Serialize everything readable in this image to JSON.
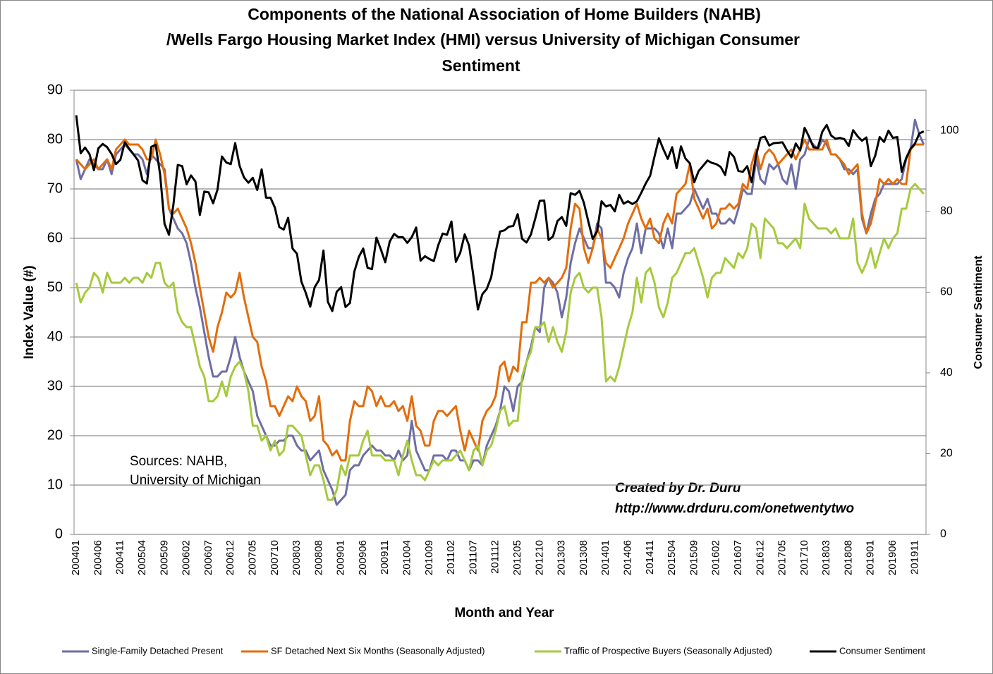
{
  "chart_data": {
    "type": "line",
    "title": [
      "Components of the National Association of Home Builders (NAHB)",
      "/Wells Fargo Housing Market Index (HMI) versus University of Michigan Consumer",
      "Sentiment"
    ],
    "x_label": "Month and Year",
    "y_label": "Index Value (#)",
    "y2_label": "Consumer Sentiment",
    "source": [
      "Sources: NAHB,",
      "University of Michigan"
    ],
    "credit": [
      "Created by Dr. Duru",
      "http://www.drduru.com/onetwentytwo"
    ],
    "ylim": [
      0,
      90
    ],
    "yticks": [
      0,
      10,
      20,
      30,
      40,
      50,
      60,
      70,
      80,
      90
    ],
    "y2lim": [
      0,
      110
    ],
    "y2ticks": [
      0,
      20,
      40,
      60,
      80,
      100
    ],
    "grid": true,
    "legend": "bottom",
    "categories": [
      "200401",
      null,
      null,
      null,
      null,
      "200406",
      null,
      null,
      null,
      null,
      "200411",
      null,
      null,
      null,
      null,
      "200504",
      null,
      null,
      null,
      null,
      "200509",
      null,
      null,
      null,
      null,
      "200602",
      null,
      null,
      null,
      null,
      "200607",
      null,
      null,
      null,
      null,
      "200612",
      null,
      null,
      null,
      null,
      "200705",
      null,
      null,
      null,
      null,
      "200710",
      null,
      null,
      null,
      null,
      "200803",
      null,
      null,
      null,
      null,
      "200808",
      null,
      null,
      null,
      null,
      "200901",
      null,
      null,
      null,
      null,
      "200906",
      null,
      null,
      null,
      null,
      "200911",
      null,
      null,
      null,
      null,
      "201004",
      null,
      null,
      null,
      null,
      "201009",
      null,
      null,
      null,
      null,
      "201102",
      null,
      null,
      null,
      null,
      "201107",
      null,
      null,
      null,
      null,
      "201112",
      null,
      null,
      null,
      null,
      "201205",
      null,
      null,
      null,
      null,
      "201210",
      null,
      null,
      null,
      null,
      "201303",
      null,
      null,
      null,
      null,
      "201308",
      null,
      null,
      null,
      null,
      "201401",
      null,
      null,
      null,
      null,
      "201406",
      null,
      null,
      null,
      null,
      "201411",
      null,
      null,
      null,
      null,
      "201504",
      null,
      null,
      null,
      null,
      "201509",
      null,
      null,
      null,
      null,
      "201602",
      null,
      null,
      null,
      null,
      "201607",
      null,
      null,
      null,
      null,
      "201612",
      null,
      null,
      null,
      null,
      "201705",
      null,
      null,
      null,
      null,
      "201710",
      null,
      null,
      null,
      null,
      "201803",
      null,
      null,
      null,
      null,
      "201808",
      null,
      null,
      null,
      null,
      "201901",
      null,
      null,
      null,
      null,
      "201906",
      null,
      null,
      null,
      null,
      "201911",
      null,
      null
    ],
    "series": [
      {
        "name": "Single-Family Detached Present",
        "color": "#6E6EA6",
        "values": [
          76,
          72,
          74,
          76,
          75,
          74,
          74,
          76,
          73,
          77,
          78,
          79,
          78,
          77,
          77,
          76,
          73,
          77,
          76,
          75,
          74,
          66,
          64,
          62,
          61,
          59,
          55,
          50,
          46,
          41,
          36,
          32,
          32,
          33,
          33,
          36,
          40,
          36,
          33,
          31,
          29,
          24,
          22,
          20,
          18,
          18,
          19,
          19,
          20,
          20,
          18,
          17,
          17,
          15,
          16,
          17,
          13,
          11,
          9,
          6,
          7,
          8,
          13,
          14,
          14,
          16,
          17,
          18,
          17,
          17,
          16,
          16,
          15,
          17,
          15,
          16,
          23,
          17,
          15,
          13,
          13,
          16,
          16,
          16,
          15,
          17,
          17,
          15,
          15,
          13,
          15,
          15,
          14,
          18,
          20,
          22,
          25,
          30,
          29,
          25,
          30,
          31,
          35,
          38,
          42,
          41,
          50,
          52,
          51,
          49,
          44,
          48,
          55,
          59,
          62,
          60,
          58,
          58,
          63,
          62,
          51,
          51,
          50,
          48,
          53,
          56,
          58,
          63,
          57,
          62,
          62,
          62,
          61,
          58,
          62,
          58,
          65,
          65,
          66,
          67,
          70,
          68,
          66,
          68,
          65,
          65,
          63,
          63,
          64,
          63,
          66,
          70,
          69,
          69,
          76,
          72,
          71,
          75,
          74,
          75,
          72,
          71,
          75,
          70,
          76,
          77,
          80,
          79,
          78,
          80,
          79,
          77,
          77,
          76,
          74,
          74,
          73,
          74,
          64,
          61,
          65,
          68,
          69,
          71,
          71,
          71,
          71,
          72,
          76,
          78,
          84,
          81,
          79
        ]
      },
      {
        "name": "SF Detached Next Six Months (Seasonally Adjusted)",
        "color": "#E46C0A",
        "values": [
          76,
          75,
          74,
          75,
          76,
          74,
          75,
          76,
          74,
          78,
          79,
          80,
          79,
          79,
          79,
          78,
          76,
          76,
          80,
          77,
          73,
          66,
          65,
          66,
          64,
          62,
          59,
          55,
          50,
          45,
          40,
          37,
          42,
          45,
          49,
          48,
          49,
          53,
          48,
          44,
          40,
          39,
          34,
          31,
          26,
          26,
          24,
          26,
          28,
          27,
          30,
          28,
          27,
          23,
          24,
          28,
          19,
          18,
          16,
          17,
          15,
          15,
          23,
          27,
          26,
          26,
          30,
          29,
          26,
          28,
          26,
          26,
          27,
          25,
          26,
          23,
          28,
          22,
          21,
          18,
          18,
          23,
          25,
          25,
          24,
          25,
          26,
          21,
          17,
          21,
          19,
          17,
          23,
          25,
          26,
          28,
          34,
          35,
          31,
          34,
          33,
          43,
          43,
          51,
          51,
          52,
          51,
          52,
          50,
          51,
          52,
          54,
          62,
          67,
          66,
          58,
          55,
          58,
          62,
          60,
          55,
          54,
          56,
          58,
          60,
          63,
          65,
          67,
          64,
          62,
          64,
          60,
          59,
          63,
          65,
          63,
          69,
          70,
          71,
          75,
          68,
          66,
          64,
          66,
          62,
          63,
          66,
          66,
          67,
          66,
          67,
          71,
          70,
          75,
          78,
          74,
          77,
          78,
          77,
          75,
          76,
          77,
          78,
          76,
          78,
          80,
          78,
          78,
          78,
          78,
          80,
          77,
          77,
          76,
          75,
          73,
          74,
          75,
          65,
          61,
          63,
          67,
          72,
          71,
          72,
          71,
          72,
          71,
          71,
          78,
          79,
          79,
          79
        ]
      },
      {
        "name": "Traffic of Prospective Buyers (Seasonally Adjusted)",
        "color": "#A5CA3C",
        "values": [
          51,
          47,
          49,
          50,
          53,
          52,
          49,
          53,
          51,
          51,
          51,
          52,
          51,
          52,
          52,
          51,
          53,
          52,
          55,
          55,
          51,
          50,
          51,
          45,
          43,
          42,
          42,
          38,
          34,
          32,
          27,
          27,
          28,
          31,
          28,
          32,
          34,
          35,
          33,
          29,
          22,
          22,
          19,
          20,
          17,
          19,
          16,
          17,
          22,
          22,
          21,
          20,
          16,
          12,
          14,
          14,
          11,
          7,
          7,
          9,
          14,
          12,
          16,
          16,
          16,
          19,
          21,
          16,
          16,
          16,
          15,
          15,
          15,
          12,
          16,
          19,
          15,
          12,
          12,
          11,
          13,
          15,
          14,
          15,
          15,
          15,
          16,
          17,
          15,
          13,
          17,
          18,
          14,
          17,
          18,
          21,
          25,
          26,
          22,
          23,
          23,
          32,
          35,
          37,
          42,
          42,
          43,
          39,
          42,
          39,
          37,
          41,
          49,
          52,
          53,
          50,
          49,
          50,
          50,
          44,
          31,
          32,
          31,
          34,
          38,
          42,
          45,
          52,
          47,
          53,
          54,
          51,
          46,
          44,
          47,
          52,
          53,
          55,
          57,
          57,
          58,
          55,
          52,
          48,
          52,
          53,
          53,
          56,
          55,
          54,
          57,
          56,
          58,
          63,
          62,
          56,
          64,
          63,
          62,
          59,
          59,
          58,
          59,
          60,
          58,
          67,
          64,
          63,
          62,
          62,
          62,
          61,
          62,
          60,
          60,
          60,
          64,
          55,
          53,
          55,
          58,
          54,
          57,
          60,
          58,
          60,
          61,
          66,
          66,
          70,
          71,
          70,
          69
        ]
      },
      {
        "name": "Consumer Sentiment",
        "color": "#000000",
        "axis": "y2",
        "values": [
          103.8,
          94.4,
          95.8,
          94.2,
          90.2,
          95.6,
          96.7,
          95.9,
          94.2,
          91.7,
          92.8,
          97.1,
          95.5,
          94.1,
          92.6,
          87.7,
          86.9,
          96.0,
          96.5,
          89.1,
          76.9,
          74.2,
          81.6,
          91.5,
          91.2,
          86.7,
          88.9,
          87.4,
          79.1,
          84.9,
          84.7,
          82.0,
          85.4,
          93.6,
          92.1,
          91.7,
          96.9,
          91.3,
          88.4,
          87.1,
          88.3,
          85.3,
          90.4,
          83.4,
          83.4,
          80.9,
          76.1,
          75.5,
          78.4,
          70.8,
          69.5,
          62.6,
          59.8,
          56.4,
          61.2,
          63.0,
          70.3,
          57.6,
          55.3,
          60.1,
          61.2,
          56.3,
          57.3,
          65.1,
          68.7,
          70.8,
          66.0,
          65.7,
          73.5,
          70.6,
          67.4,
          72.5,
          74.4,
          73.6,
          73.6,
          72.2,
          73.6,
          76.0,
          67.8,
          68.9,
          68.2,
          67.7,
          71.6,
          74.5,
          74.2,
          77.5,
          67.5,
          69.8,
          74.3,
          71.5,
          63.7,
          55.7,
          59.5,
          60.8,
          63.7,
          69.9,
          75.0,
          75.3,
          76.2,
          76.4,
          79.3,
          73.2,
          72.3,
          74.3,
          78.3,
          82.6,
          82.7,
          72.9,
          73.8,
          77.6,
          78.6,
          76.4,
          84.5,
          84.1,
          85.1,
          82.1,
          77.5,
          73.2,
          75.1,
          82.5,
          81.2,
          81.6,
          80.0,
          84.1,
          81.9,
          82.5,
          81.8,
          82.5,
          84.6,
          86.9,
          88.8,
          93.6,
          98.1,
          95.4,
          93.0,
          95.9,
          90.7,
          96.1,
          93.1,
          91.9,
          87.2,
          90.0,
          91.3,
          92.6,
          92.0,
          91.7,
          91.0,
          89.0,
          94.7,
          93.5,
          90.0,
          89.8,
          91.2,
          87.2,
          93.8,
          98.2,
          98.5,
          96.3,
          96.9,
          97.0,
          97.1,
          95.1,
          93.4,
          96.8,
          95.1,
          100.7,
          98.5,
          95.9,
          95.7,
          99.7,
          101.4,
          98.8,
          98.0,
          98.2,
          97.9,
          96.2,
          100.1,
          98.6,
          97.5,
          98.3,
          91.2,
          93.8,
          98.4,
          97.2,
          100.0,
          98.2,
          98.4,
          89.8,
          93.2,
          95.5,
          96.8,
          99.3,
          99.8
        ]
      }
    ]
  }
}
